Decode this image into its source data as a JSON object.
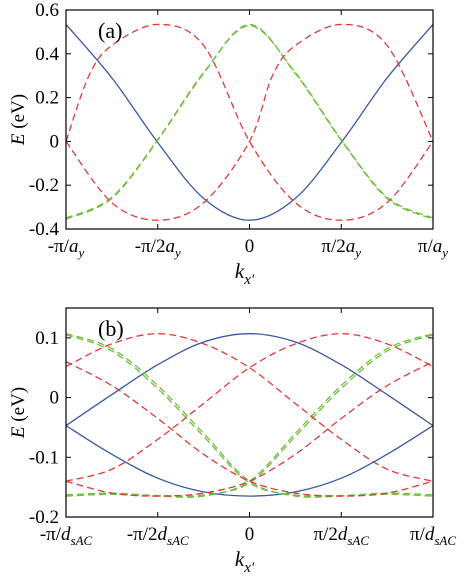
{
  "chart_data": [
    {
      "panel_label": "(a)",
      "type": "line",
      "x_range": [
        -1,
        1
      ],
      "ylim": [
        -0.4,
        0.6
      ],
      "ylabel": {
        "symbol": "E",
        "unit": " (eV)"
      },
      "xlabel": {
        "base": "k",
        "sub": "x'"
      },
      "yticks": [
        {
          "v": 0.6,
          "label": "0.6"
        },
        {
          "v": 0.4,
          "label": "0.4"
        },
        {
          "v": 0.2,
          "label": "0.2"
        },
        {
          "v": 0,
          "label": "0"
        },
        {
          "v": -0.2,
          "label": "-0.2"
        },
        {
          "v": -0.4,
          "label": "-0.4"
        }
      ],
      "xticks": [
        {
          "v": -1,
          "pre": "-π/",
          "it": "a",
          "sub": "y"
        },
        {
          "v": -0.5,
          "pre": "-π/2",
          "it": "a",
          "sub": "y"
        },
        {
          "v": 0,
          "pre": "0",
          "it": "",
          "sub": ""
        },
        {
          "v": 0.5,
          "pre": "π/2",
          "it": "a",
          "sub": "y"
        },
        {
          "v": 1,
          "pre": "π/",
          "it": "a",
          "sub": "y"
        }
      ],
      "series": [
        {
          "color": "#3a55a4",
          "dash": "solid",
          "points": [
            [
              -1,
              0.534
            ],
            [
              -0.75,
              0.29
            ],
            [
              -0.5,
              -0.005
            ],
            [
              -0.25,
              -0.26
            ],
            [
              0,
              -0.36
            ],
            [
              0.25,
              -0.26
            ],
            [
              0.5,
              -0.005
            ],
            [
              0.75,
              0.29
            ],
            [
              1,
              0.534
            ]
          ]
        },
        {
          "color": "#6fbf3a",
          "dash": "dash",
          "points": [
            [
              -1,
              -0.355
            ],
            [
              -0.75,
              -0.26
            ],
            [
              -0.5,
              0.005
            ],
            [
              -0.25,
              0.31
            ],
            [
              0,
              0.534
            ],
            [
              0.25,
              0.31
            ],
            [
              0.5,
              0.005
            ],
            [
              0.75,
              -0.26
            ],
            [
              1,
              -0.355
            ]
          ]
        },
        {
          "color": "#6fbf3a",
          "dash": "dash",
          "points": [
            [
              -1,
              -0.35
            ],
            [
              -0.75,
              -0.255
            ],
            [
              -0.5,
              0.008
            ],
            [
              -0.25,
              0.314
            ],
            [
              0,
              0.528
            ],
            [
              0.25,
              0.314
            ],
            [
              0.5,
              0.008
            ],
            [
              0.75,
              -0.255
            ],
            [
              1,
              -0.35
            ]
          ]
        },
        {
          "color": "#e03a3a",
          "dash": "dash",
          "points": [
            [
              -1,
              0
            ],
            [
              -0.875,
              0.3
            ],
            [
              -0.75,
              0.438
            ],
            [
              -0.5,
              0.534
            ],
            [
              -0.25,
              0.438
            ],
            [
              0,
              0
            ],
            [
              0.25,
              -0.28
            ],
            [
              0.5,
              -0.36
            ],
            [
              0.75,
              -0.28
            ],
            [
              1,
              0
            ]
          ]
        },
        {
          "color": "#e03a3a",
          "dash": "dash",
          "points": [
            [
              -1,
              0
            ],
            [
              -0.75,
              -0.28
            ],
            [
              -0.5,
              -0.36
            ],
            [
              -0.25,
              -0.28
            ],
            [
              0,
              0
            ],
            [
              0.125,
              0.3
            ],
            [
              0.25,
              0.438
            ],
            [
              0.5,
              0.534
            ],
            [
              0.75,
              0.438
            ],
            [
              1,
              0
            ]
          ]
        }
      ]
    },
    {
      "panel_label": "(b)",
      "type": "line",
      "x_range": [
        -1,
        1
      ],
      "ylim": [
        -0.2,
        0.15
      ],
      "ylabel": {
        "symbol": "E",
        "unit": " (eV)"
      },
      "xlabel": {
        "base": "k",
        "sub": "x'"
      },
      "yticks": [
        {
          "v": 0.1,
          "label": "0.1"
        },
        {
          "v": 0,
          "label": "0"
        },
        {
          "v": -0.1,
          "label": "-0.1"
        },
        {
          "v": -0.2,
          "label": "-0.2"
        }
      ],
      "xticks": [
        {
          "v": -1,
          "pre": "-π/",
          "it": "d",
          "sub": "sAC"
        },
        {
          "v": -0.5,
          "pre": "-π/2",
          "it": "d",
          "sub": "sAC"
        },
        {
          "v": 0,
          "pre": "0",
          "it": "",
          "sub": ""
        },
        {
          "v": 0.5,
          "pre": "π/2",
          "it": "d",
          "sub": "sAC"
        },
        {
          "v": 1,
          "pre": "π/",
          "it": "d",
          "sub": "sAC"
        }
      ],
      "series": [
        {
          "color": "#3a55a4",
          "dash": "solid",
          "points": [
            [
              -1,
              -0.047
            ],
            [
              -0.75,
              0.005
            ],
            [
              -0.5,
              0.055
            ],
            [
              -0.25,
              0.093
            ],
            [
              0,
              0.107
            ],
            [
              0.25,
              0.093
            ],
            [
              0.5,
              0.055
            ],
            [
              0.75,
              0.005
            ],
            [
              1,
              -0.047
            ]
          ]
        },
        {
          "color": "#3a55a4",
          "dash": "solid",
          "points": [
            [
              -1,
              -0.047
            ],
            [
              -0.75,
              -0.095
            ],
            [
              -0.5,
              -0.135
            ],
            [
              -0.25,
              -0.158
            ],
            [
              0,
              -0.165
            ],
            [
              0.25,
              -0.158
            ],
            [
              0.5,
              -0.135
            ],
            [
              0.75,
              -0.095
            ],
            [
              1,
              -0.047
            ]
          ]
        },
        {
          "color": "#6fbf3a",
          "dash": "dash",
          "points": [
            [
              -1,
              0.107
            ],
            [
              -0.75,
              0.082
            ],
            [
              -0.5,
              0.02
            ],
            [
              -0.25,
              -0.06
            ],
            [
              0,
              -0.14
            ],
            [
              0.25,
              -0.165
            ],
            [
              0.5,
              -0.165
            ],
            [
              0.75,
              -0.162
            ],
            [
              1,
              -0.165
            ]
          ]
        },
        {
          "color": "#6fbf3a",
          "dash": "dash",
          "points": [
            [
              -1,
              0.105
            ],
            [
              -0.75,
              0.078
            ],
            [
              -0.5,
              0.015
            ],
            [
              -0.25,
              -0.065
            ],
            [
              0,
              -0.143
            ],
            [
              0.25,
              -0.163
            ],
            [
              0.5,
              -0.164
            ],
            [
              0.75,
              -0.16
            ],
            [
              1,
              -0.163
            ]
          ]
        },
        {
          "color": "#6fbf3a",
          "dash": "dash",
          "points": [
            [
              -1,
              -0.165
            ],
            [
              -0.75,
              -0.162
            ],
            [
              -0.5,
              -0.165
            ],
            [
              -0.25,
              -0.165
            ],
            [
              0,
              -0.14
            ],
            [
              0.25,
              -0.06
            ],
            [
              0.5,
              0.02
            ],
            [
              0.75,
              0.082
            ],
            [
              1,
              0.107
            ]
          ]
        },
        {
          "color": "#6fbf3a",
          "dash": "dash",
          "points": [
            [
              -1,
              -0.163
            ],
            [
              -0.75,
              -0.16
            ],
            [
              -0.5,
              -0.164
            ],
            [
              -0.25,
              -0.163
            ],
            [
              0,
              -0.143
            ],
            [
              0.25,
              -0.065
            ],
            [
              0.5,
              0.015
            ],
            [
              0.75,
              0.078
            ],
            [
              1,
              0.105
            ]
          ]
        },
        {
          "color": "#e03a3a",
          "dash": "dash",
          "points": [
            [
              -1,
              0.052
            ],
            [
              -0.75,
              0.09
            ],
            [
              -0.5,
              0.107
            ],
            [
              -0.25,
              0.09
            ],
            [
              0,
              0.05
            ],
            [
              0.25,
              -0.01
            ],
            [
              0.5,
              -0.07
            ],
            [
              0.75,
              -0.12
            ],
            [
              1,
              -0.14
            ]
          ]
        },
        {
          "color": "#e03a3a",
          "dash": "dash",
          "points": [
            [
              -1,
              -0.14
            ],
            [
              -0.75,
              -0.12
            ],
            [
              -0.5,
              -0.07
            ],
            [
              -0.25,
              -0.01
            ],
            [
              0,
              0.05
            ],
            [
              0.25,
              0.09
            ],
            [
              0.5,
              0.107
            ],
            [
              0.75,
              0.09
            ],
            [
              1,
              0.052
            ]
          ]
        },
        {
          "color": "#e03a3a",
          "dash": "dash",
          "points": [
            [
              -1,
              0.06
            ],
            [
              -0.75,
              0.02
            ],
            [
              -0.5,
              -0.035
            ],
            [
              -0.25,
              -0.095
            ],
            [
              0,
              -0.14
            ],
            [
              0.25,
              -0.16
            ],
            [
              0.5,
              -0.165
            ],
            [
              0.75,
              -0.16
            ],
            [
              1,
              -0.14
            ]
          ]
        },
        {
          "color": "#e03a3a",
          "dash": "dash",
          "points": [
            [
              -1,
              -0.14
            ],
            [
              -0.75,
              -0.16
            ],
            [
              -0.5,
              -0.165
            ],
            [
              -0.25,
              -0.16
            ],
            [
              0,
              -0.14
            ],
            [
              0.25,
              -0.095
            ],
            [
              0.5,
              -0.035
            ],
            [
              0.75,
              0.02
            ],
            [
              1,
              0.06
            ]
          ]
        }
      ]
    }
  ]
}
